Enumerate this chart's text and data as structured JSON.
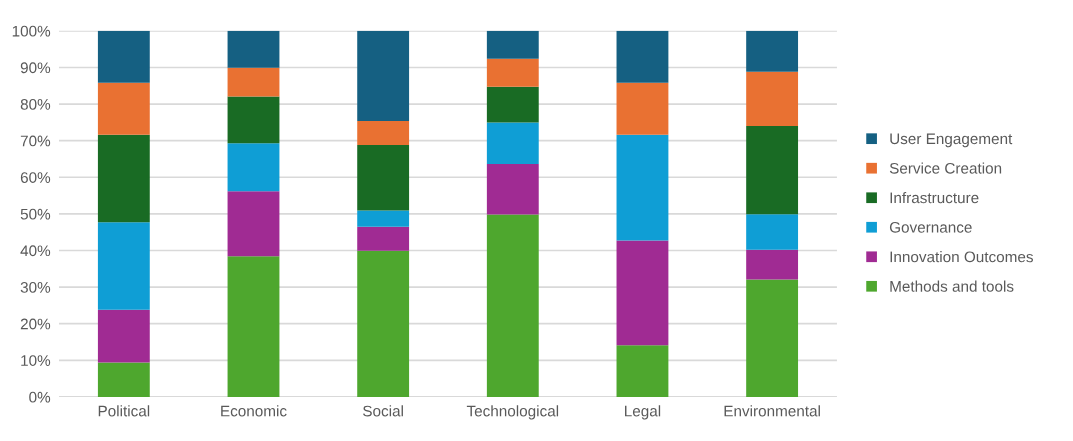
{
  "chart_data": {
    "type": "bar",
    "stacked": true,
    "categories": [
      "Political",
      "Economic",
      "Social",
      "Technological",
      "Legal",
      "Environmental"
    ],
    "series": [
      {
        "name": "Methods and tools",
        "color": "#4ea72e",
        "values": [
          9.4,
          38.4,
          39.9,
          49.8,
          14.1,
          32.1
        ]
      },
      {
        "name": "Innovation Outcomes",
        "color": "#a02b93",
        "values": [
          14.4,
          17.8,
          6.6,
          13.8,
          28.6,
          8.1
        ]
      },
      {
        "name": "Governance",
        "color": "#0f9ed5",
        "values": [
          23.9,
          13.1,
          4.4,
          11.4,
          28.9,
          9.7
        ]
      },
      {
        "name": "Infrastructure",
        "color": "#196b24",
        "values": [
          23.9,
          12.8,
          17.9,
          9.7,
          0,
          24.1
        ]
      },
      {
        "name": "Service Creation",
        "color": "#e97132",
        "values": [
          14.2,
          7.8,
          6.6,
          7.7,
          14.2,
          14.8
        ]
      },
      {
        "name": "User Engagement",
        "color": "#156082",
        "values": [
          14.2,
          10.1,
          24.6,
          7.6,
          14.2,
          11.2
        ]
      }
    ],
    "ylim": [
      0,
      100
    ],
    "yticks": [
      {
        "value": 0,
        "label": "0%"
      },
      {
        "value": 10,
        "label": "10%"
      },
      {
        "value": 20,
        "label": "20%"
      },
      {
        "value": 30,
        "label": "30%"
      },
      {
        "value": 40,
        "label": "40%"
      },
      {
        "value": 50,
        "label": "50%"
      },
      {
        "value": 60,
        "label": "60%"
      },
      {
        "value": 70,
        "label": "70%"
      },
      {
        "value": 80,
        "label": "80%"
      },
      {
        "value": 90,
        "label": "90%"
      },
      {
        "value": 100,
        "label": "100%"
      }
    ],
    "grid": "y",
    "legend": "right"
  }
}
